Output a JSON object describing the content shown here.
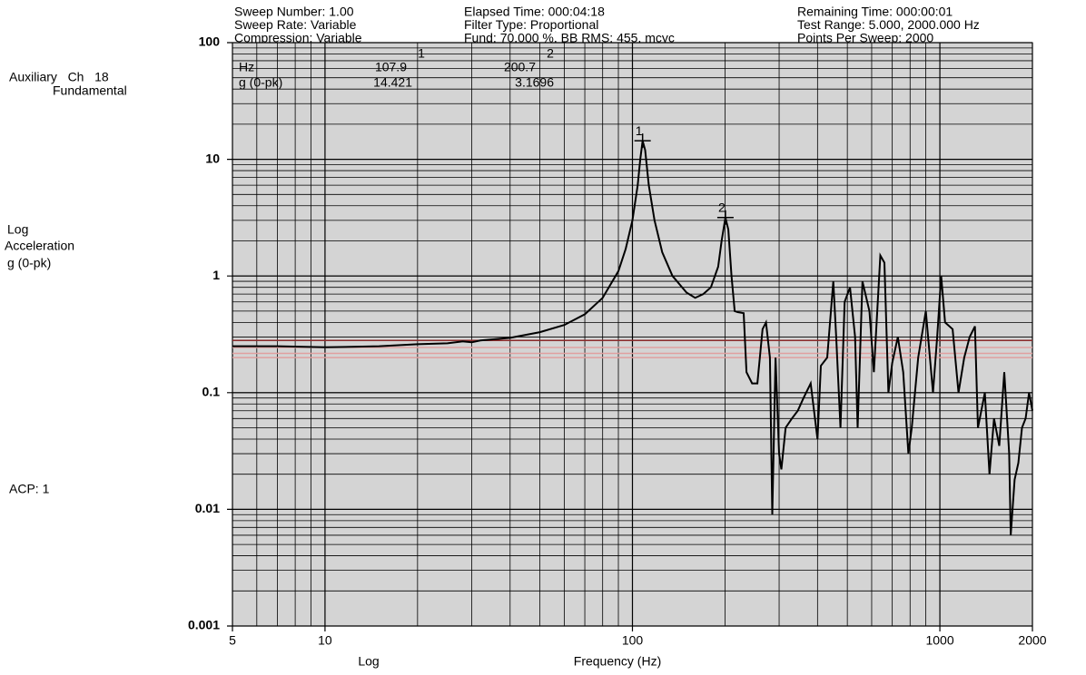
{
  "chart_data": {
    "type": "line",
    "header": [
      [
        "Sweep Number: 1.00",
        "Elapsed Time: 000:04:18",
        "Remaining Time: 000:00:01"
      ],
      [
        "Sweep Rate: Variable",
        "Filter Type: Proportional",
        "Test Range:  5.000, 2000.000 Hz"
      ],
      [
        "Compression: Variable",
        "Fund: 70.000 %, BB RMS: 455. mcyc",
        "Points Per Sweep: 2000"
      ]
    ],
    "channel": "Auxiliary   Ch   18",
    "subtitle": "Fundamental",
    "ylabel": [
      "Log",
      "Acceleration",
      "g (0-pk)"
    ],
    "note": "ACP: 1",
    "xscale_label": "Log",
    "xlabel": "Frequency (Hz)",
    "readout_labels": [
      "Hz",
      "g (0-pk)"
    ],
    "log_x": true,
    "log_y": true,
    "grid": true,
    "plot_color": "#d4d4d4",
    "xlim": [
      5,
      2000
    ],
    "xticks": [
      5,
      10,
      100,
      1000,
      2000
    ],
    "ylim": [
      0.001,
      100
    ],
    "yticks": [
      100,
      10,
      1,
      0.1,
      0.01,
      0.001
    ],
    "reference_lines": [
      {
        "value": 0.28,
        "color": "#8b2a2a"
      },
      {
        "value": 0.244,
        "color": "#e0a0a0"
      },
      {
        "value": 0.217,
        "color": "#e0a0a0"
      },
      {
        "value": 0.2,
        "color": "#e0a0a0"
      }
    ],
    "markers": [
      {
        "label": "1",
        "x": 107.9,
        "y": 14.421
      },
      {
        "label": "2",
        "x": 200.7,
        "y": 3.1696
      }
    ],
    "x": [
      5,
      7,
      10,
      15,
      20,
      25,
      28,
      30,
      32,
      40,
      50,
      60,
      70,
      80,
      90,
      95,
      100,
      104,
      106,
      107.9,
      110,
      113,
      118,
      125,
      135,
      150,
      160,
      170,
      180,
      190,
      195,
      200.7,
      205,
      210,
      215,
      220,
      230,
      235,
      245,
      255,
      265,
      272,
      280,
      285,
      292,
      300,
      305,
      315,
      330,
      345,
      360,
      380,
      400,
      410,
      430,
      450,
      460,
      475,
      490,
      510,
      530,
      540,
      560,
      590,
      610,
      640,
      660,
      680,
      700,
      730,
      760,
      790,
      810,
      850,
      900,
      950,
      980,
      1010,
      1040,
      1100,
      1150,
      1200,
      1250,
      1300,
      1330,
      1400,
      1450,
      1500,
      1560,
      1620,
      1680,
      1700,
      1750,
      1800,
      1850,
      1900,
      1950,
      2000
    ],
    "series": [
      {
        "name": "Fundamental",
        "color": "#000000",
        "values": [
          0.25,
          0.25,
          0.245,
          0.25,
          0.26,
          0.265,
          0.275,
          0.27,
          0.28,
          0.295,
          0.33,
          0.38,
          0.47,
          0.65,
          1.1,
          1.7,
          3,
          6,
          10,
          14.421,
          12,
          6,
          3,
          1.6,
          1.0,
          0.72,
          0.65,
          0.7,
          0.8,
          1.2,
          2,
          3.1696,
          2.5,
          1,
          0.5,
          0.49,
          0.48,
          0.15,
          0.12,
          0.12,
          0.35,
          0.4,
          0.2,
          0.009,
          0.2,
          0.03,
          0.022,
          0.05,
          0.06,
          0.07,
          0.09,
          0.12,
          0.04,
          0.17,
          0.2,
          0.9,
          0.3,
          0.05,
          0.6,
          0.8,
          0.3,
          0.05,
          0.9,
          0.5,
          0.15,
          1.5,
          1.3,
          0.1,
          0.18,
          0.3,
          0.15,
          0.03,
          0.05,
          0.2,
          0.5,
          0.1,
          0.3,
          1.0,
          0.4,
          0.35,
          0.1,
          0.2,
          0.3,
          0.37,
          0.05,
          0.1,
          0.02,
          0.06,
          0.035,
          0.15,
          0.03,
          0.006,
          0.018,
          0.025,
          0.05,
          0.06,
          0.1,
          0.07
        ]
      }
    ]
  }
}
